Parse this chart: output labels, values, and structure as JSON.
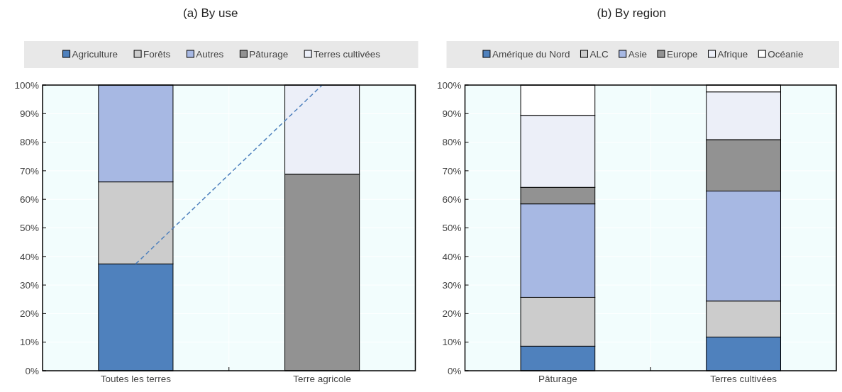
{
  "chart_data": [
    {
      "type": "bar",
      "title": "(a) By use",
      "stacked": true,
      "legend": "top",
      "grid": true,
      "categories": [
        "Toutes les terres",
        "Terre agricole"
      ],
      "ylim": [
        0,
        100
      ],
      "yticks": [
        {
          "value": 0,
          "label": "0%"
        },
        {
          "value": 10,
          "label": "10%"
        },
        {
          "value": 20,
          "label": "20%"
        },
        {
          "value": 30,
          "label": "30%"
        },
        {
          "value": 40,
          "label": "40%"
        },
        {
          "value": 50,
          "label": "50%"
        },
        {
          "value": 60,
          "label": "60%"
        },
        {
          "value": 70,
          "label": "70%"
        },
        {
          "value": 80,
          "label": "80%"
        },
        {
          "value": 90,
          "label": "90%"
        },
        {
          "value": 100,
          "label": "100%"
        }
      ],
      "series": [
        {
          "name": "Agriculture",
          "color": "#4f81bd",
          "values": [
            37.4,
            null
          ]
        },
        {
          "name": "Forêts",
          "color": "#cccccc",
          "values": [
            28.7,
            null
          ]
        },
        {
          "name": "Autres",
          "color": "#a7b8e3",
          "values": [
            33.9,
            null
          ]
        },
        {
          "name": "Pâturage",
          "color": "#929292",
          "values": [
            null,
            68.8
          ]
        },
        {
          "name": "Terres cultivées",
          "color": "#eceff8",
          "values": [
            null,
            31.2
          ]
        },
        {
          "type": "line",
          "color": "#4f81bd",
          "line_style": "dashed",
          "values": [
            37.4,
            100
          ]
        }
      ]
    },
    {
      "type": "bar",
      "title": "(b) By region",
      "stacked": true,
      "legend": "top",
      "grid": true,
      "categories": [
        "Pâturage",
        "Terres cultivées"
      ],
      "ylim": [
        0,
        100
      ],
      "yticks": [
        {
          "value": 0,
          "label": "0%"
        },
        {
          "value": 10,
          "label": "10%"
        },
        {
          "value": 20,
          "label": "20%"
        },
        {
          "value": 30,
          "label": "30%"
        },
        {
          "value": 40,
          "label": "40%"
        },
        {
          "value": 50,
          "label": "50%"
        },
        {
          "value": 60,
          "label": "60%"
        },
        {
          "value": 70,
          "label": "70%"
        },
        {
          "value": 80,
          "label": "80%"
        },
        {
          "value": 90,
          "label": "90%"
        },
        {
          "value": 100,
          "label": "100%"
        }
      ],
      "series": [
        {
          "name": "Amérique du Nord",
          "color": "#4f81bd",
          "values": [
            8.6,
            11.8
          ]
        },
        {
          "name": "ALC",
          "color": "#cccccc",
          "values": [
            17.1,
            12.6
          ]
        },
        {
          "name": "Asie",
          "color": "#a7b8e3",
          "values": [
            32.7,
            38.5
          ]
        },
        {
          "name": "Europe",
          "color": "#929292",
          "values": [
            5.8,
            18
          ]
        },
        {
          "name": "Afrique",
          "color": "#eceff8",
          "values": [
            25.2,
            16.7
          ]
        },
        {
          "name": "Océanie",
          "color": "#ffffff",
          "values": [
            10.6,
            2.4
          ]
        }
      ]
    }
  ]
}
